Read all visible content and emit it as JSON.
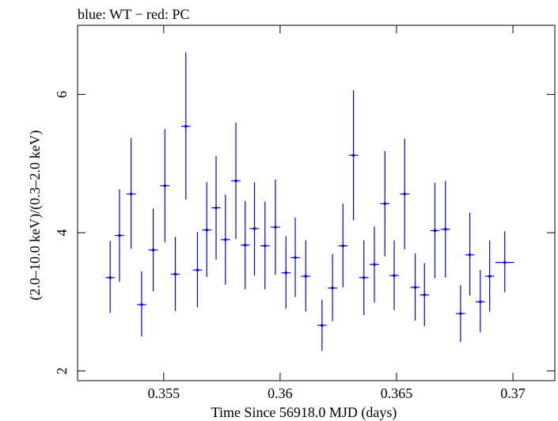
{
  "chart_data": {
    "type": "scatter",
    "title": "blue: WT − red: PC",
    "xlabel": "Time Since 56918.0 MJD (days)",
    "ylabel": "(2.0–10.0 keV)/(0.3–2.0 keV)",
    "xlim": [
      0.3513,
      0.3718
    ],
    "ylim": [
      1.86,
      7.0
    ],
    "x_ticks": [
      0.355,
      0.36,
      0.365,
      0.37
    ],
    "x_tick_labels": [
      "0.355",
      "0.36",
      "0.365",
      "0.37"
    ],
    "y_ticks": [
      2,
      4,
      6
    ],
    "y_tick_labels": [
      "2",
      "4",
      "6"
    ],
    "grid": false,
    "series": [
      {
        "color": "#0000ff",
        "points": [
          {
            "x": 0.3527,
            "y": 3.35,
            "xerr": 0.0002,
            "ylo": 2.84,
            "yhi": 3.88
          },
          {
            "x": 0.3531,
            "y": 3.96,
            "xerr": 0.0002,
            "ylo": 3.29,
            "yhi": 4.63
          },
          {
            "x": 0.3536,
            "y": 4.56,
            "xerr": 0.0002,
            "ylo": 3.77,
            "yhi": 5.37
          },
          {
            "x": 0.35405,
            "y": 2.96,
            "xerr": 0.0002,
            "ylo": 2.5,
            "yhi": 3.44
          },
          {
            "x": 0.35455,
            "y": 3.75,
            "xerr": 0.0002,
            "ylo": 3.15,
            "yhi": 4.35
          },
          {
            "x": 0.35505,
            "y": 4.68,
            "xerr": 0.0002,
            "ylo": 3.86,
            "yhi": 5.5
          },
          {
            "x": 0.3555,
            "y": 3.4,
            "xerr": 0.0002,
            "ylo": 2.87,
            "yhi": 3.94
          },
          {
            "x": 0.35595,
            "y": 5.54,
            "xerr": 0.0002,
            "ylo": 4.48,
            "yhi": 6.61
          },
          {
            "x": 0.35645,
            "y": 3.46,
            "xerr": 0.0002,
            "ylo": 2.92,
            "yhi": 4.01
          },
          {
            "x": 0.35685,
            "y": 4.04,
            "xerr": 0.0002,
            "ylo": 3.36,
            "yhi": 4.73
          },
          {
            "x": 0.35725,
            "y": 4.36,
            "xerr": 0.0002,
            "ylo": 3.61,
            "yhi": 5.11
          },
          {
            "x": 0.35765,
            "y": 3.9,
            "xerr": 0.0002,
            "ylo": 3.25,
            "yhi": 4.55
          },
          {
            "x": 0.3581,
            "y": 4.75,
            "xerr": 0.0002,
            "ylo": 3.91,
            "yhi": 5.59
          },
          {
            "x": 0.3585,
            "y": 3.82,
            "xerr": 0.0002,
            "ylo": 3.18,
            "yhi": 4.46
          },
          {
            "x": 0.3589,
            "y": 4.06,
            "xerr": 0.0002,
            "ylo": 3.38,
            "yhi": 4.73
          },
          {
            "x": 0.35935,
            "y": 3.81,
            "xerr": 0.0002,
            "ylo": 3.18,
            "yhi": 4.45
          },
          {
            "x": 0.3598,
            "y": 4.08,
            "xerr": 0.0002,
            "ylo": 3.39,
            "yhi": 4.77
          },
          {
            "x": 0.36025,
            "y": 3.42,
            "xerr": 0.0002,
            "ylo": 2.9,
            "yhi": 3.95
          },
          {
            "x": 0.36065,
            "y": 3.64,
            "xerr": 0.0002,
            "ylo": 3.07,
            "yhi": 4.22
          },
          {
            "x": 0.3611,
            "y": 3.37,
            "xerr": 0.0002,
            "ylo": 2.86,
            "yhi": 3.89
          },
          {
            "x": 0.3618,
            "y": 2.66,
            "xerr": 0.0002,
            "ylo": 2.29,
            "yhi": 3.03
          },
          {
            "x": 0.36225,
            "y": 3.2,
            "xerr": 0.0002,
            "ylo": 2.72,
            "yhi": 3.69
          },
          {
            "x": 0.3627,
            "y": 3.81,
            "xerr": 0.0002,
            "ylo": 3.21,
            "yhi": 4.42
          },
          {
            "x": 0.36315,
            "y": 5.12,
            "xerr": 0.0002,
            "ylo": 4.18,
            "yhi": 6.06
          },
          {
            "x": 0.3636,
            "y": 3.35,
            "xerr": 0.0002,
            "ylo": 2.81,
            "yhi": 3.89
          },
          {
            "x": 0.36405,
            "y": 3.54,
            "xerr": 0.0002,
            "ylo": 2.99,
            "yhi": 4.09
          },
          {
            "x": 0.3645,
            "y": 4.42,
            "xerr": 0.0002,
            "ylo": 3.66,
            "yhi": 5.18
          },
          {
            "x": 0.3649,
            "y": 3.38,
            "xerr": 0.0002,
            "ylo": 2.88,
            "yhi": 3.89
          },
          {
            "x": 0.36535,
            "y": 4.56,
            "xerr": 0.0002,
            "ylo": 3.76,
            "yhi": 5.36
          },
          {
            "x": 0.3658,
            "y": 3.21,
            "xerr": 0.0002,
            "ylo": 2.73,
            "yhi": 3.7
          },
          {
            "x": 0.3662,
            "y": 3.1,
            "xerr": 0.0002,
            "ylo": 2.65,
            "yhi": 3.56
          },
          {
            "x": 0.36665,
            "y": 4.03,
            "xerr": 0.0002,
            "ylo": 3.34,
            "yhi": 4.72
          },
          {
            "x": 0.3671,
            "y": 4.05,
            "xerr": 0.0002,
            "ylo": 3.35,
            "yhi": 4.75
          },
          {
            "x": 0.36775,
            "y": 2.83,
            "xerr": 0.0002,
            "ylo": 2.42,
            "yhi": 3.24
          },
          {
            "x": 0.36815,
            "y": 3.68,
            "xerr": 0.0002,
            "ylo": 3.09,
            "yhi": 4.29
          },
          {
            "x": 0.3686,
            "y": 3.0,
            "xerr": 0.0002,
            "ylo": 2.56,
            "yhi": 3.46
          },
          {
            "x": 0.369,
            "y": 3.37,
            "xerr": 0.0002,
            "ylo": 2.86,
            "yhi": 3.89
          },
          {
            "x": 0.36965,
            "y": 3.57,
            "xerr": 0.0004,
            "ylo": 3.14,
            "yhi": 4.02
          }
        ]
      }
    ]
  }
}
